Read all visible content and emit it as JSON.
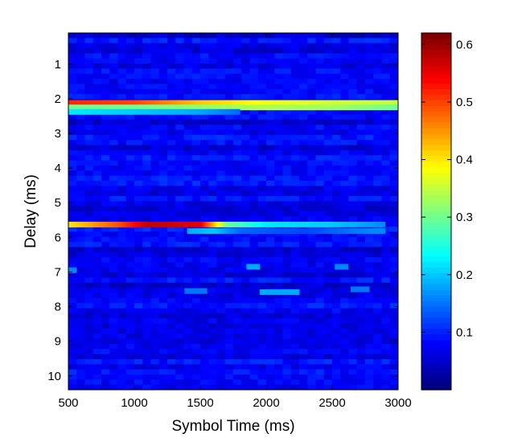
{
  "chart_data": {
    "type": "heatmap",
    "title": "",
    "xlabel": "Symbol Time (ms)",
    "ylabel": "Delay (ms)",
    "xlim": [
      500,
      3000
    ],
    "ylim": [
      0.1,
      10.4
    ],
    "y_direction": "down",
    "x_ticks": [
      500,
      1000,
      1500,
      2000,
      2500,
      3000
    ],
    "y_ticks": [
      1,
      2,
      3,
      4,
      5,
      6,
      7,
      8,
      9,
      10
    ],
    "colormap": "jet",
    "colorbar": {
      "range": [
        0.0,
        0.62
      ],
      "ticks": [
        0.1,
        0.2,
        0.3,
        0.4,
        0.5,
        0.6
      ],
      "tick_labels": [
        "0.1",
        "0.2",
        "0.3",
        "0.4",
        "0.5",
        "0.6"
      ]
    },
    "background_level": 0.07,
    "features": [
      {
        "name": "path-1-upper",
        "delay": 2.12,
        "x_start": 500,
        "x_end": 3000,
        "values": [
          [
            500,
            0.52
          ],
          [
            1000,
            0.5
          ],
          [
            1500,
            0.42
          ],
          [
            2000,
            0.38
          ],
          [
            2500,
            0.36
          ],
          [
            3000,
            0.35
          ]
        ]
      },
      {
        "name": "path-1-lower",
        "delay": 2.25,
        "x_start": 500,
        "x_end": 3000,
        "values": [
          [
            500,
            0.3
          ],
          [
            1000,
            0.3
          ],
          [
            1500,
            0.32
          ],
          [
            2000,
            0.34
          ],
          [
            2500,
            0.33
          ],
          [
            3000,
            0.3
          ]
        ]
      },
      {
        "name": "path-1-tail",
        "delay": 2.38,
        "x_start": 500,
        "x_end": 1800,
        "values": [
          [
            500,
            0.22
          ],
          [
            1000,
            0.2
          ],
          [
            1500,
            0.18
          ],
          [
            1800,
            0.14
          ]
        ]
      },
      {
        "name": "path-2",
        "delay": 5.63,
        "x_start": 500,
        "x_end": 2900,
        "values": [
          [
            500,
            0.4
          ],
          [
            900,
            0.5
          ],
          [
            1100,
            0.58
          ],
          [
            1500,
            0.56
          ],
          [
            1700,
            0.3
          ],
          [
            2000,
            0.22
          ],
          [
            2500,
            0.2
          ],
          [
            2900,
            0.16
          ]
        ]
      },
      {
        "name": "path-2-lower",
        "delay": 5.82,
        "x_start": 1400,
        "x_end": 2900,
        "values": [
          [
            1400,
            0.18
          ],
          [
            1600,
            0.2
          ],
          [
            1800,
            0.14
          ],
          [
            2300,
            0.12
          ],
          [
            2800,
            0.16
          ]
        ]
      },
      {
        "name": "spot-a",
        "delay": 6.85,
        "x_start": 1850,
        "x_end": 1950,
        "values": [
          [
            1850,
            0.18
          ],
          [
            1950,
            0.18
          ]
        ]
      },
      {
        "name": "spot-b",
        "delay": 6.85,
        "x_start": 2520,
        "x_end": 2620,
        "values": [
          [
            2520,
            0.16
          ],
          [
            2620,
            0.16
          ]
        ]
      },
      {
        "name": "spot-c",
        "delay": 7.5,
        "x_start": 2640,
        "x_end": 2780,
        "values": [
          [
            2640,
            0.15
          ],
          [
            2780,
            0.15
          ]
        ]
      },
      {
        "name": "spot-d",
        "delay": 7.58,
        "x_start": 1950,
        "x_end": 2250,
        "values": [
          [
            1950,
            0.18
          ],
          [
            2250,
            0.18
          ]
        ]
      },
      {
        "name": "spot-e",
        "delay": 7.55,
        "x_start": 1380,
        "x_end": 1550,
        "values": [
          [
            1380,
            0.15
          ],
          [
            1550,
            0.15
          ]
        ]
      },
      {
        "name": "spot-f",
        "delay": 6.95,
        "x_start": 500,
        "x_end": 560,
        "values": [
          [
            500,
            0.16
          ],
          [
            560,
            0.16
          ]
        ]
      }
    ]
  }
}
